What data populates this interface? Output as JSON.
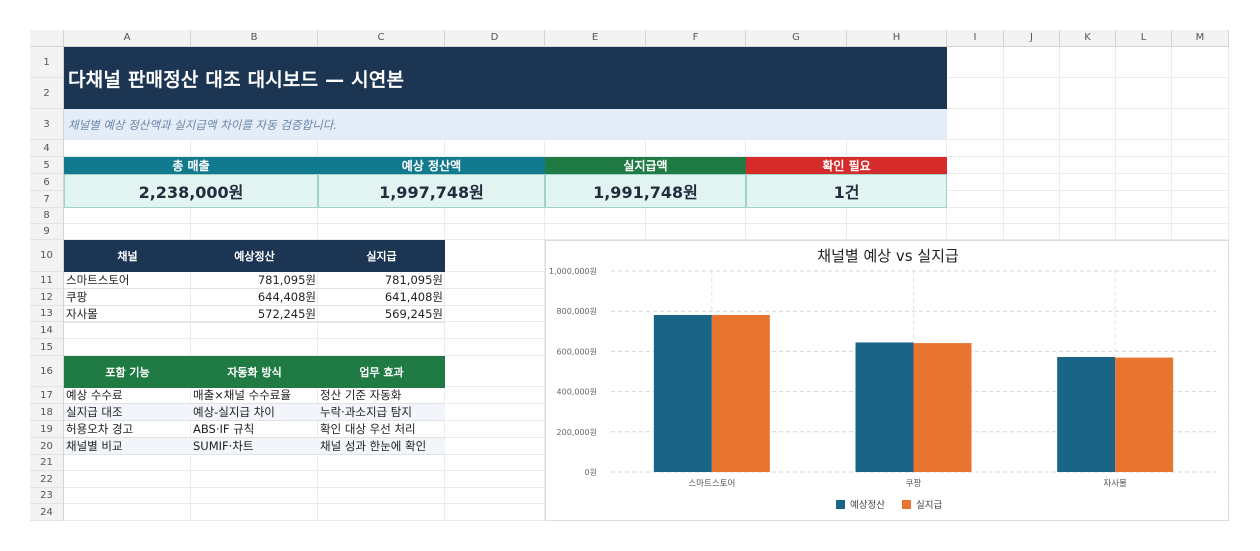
{
  "sheet": {
    "columns": [
      "A",
      "B",
      "C",
      "D",
      "E",
      "F",
      "G",
      "H",
      "I",
      "J",
      "K",
      "L",
      "M"
    ],
    "rows": [
      "1",
      "2",
      "3",
      "4",
      "5",
      "6",
      "7",
      "8",
      "9",
      "10",
      "11",
      "12",
      "13",
      "14",
      "15",
      "16",
      "17",
      "18",
      "19",
      "20",
      "21",
      "22",
      "23",
      "24"
    ]
  },
  "title": "다채널 판매정산 대조 대시보드 — 시연본",
  "subtitle": "채널별 예상 정산액과 실지급액 차이를 자동 검증합니다.",
  "kpis": [
    {
      "label": "총 매출",
      "value": "2,238,000원",
      "color": "#127a8f"
    },
    {
      "label": "예상 정산액",
      "value": "1,997,748원",
      "color": "#127a8f"
    },
    {
      "label": "실지급액",
      "value": "1,991,748원",
      "color": "#1f7a44"
    },
    {
      "label": "확인 필요",
      "value": "1건",
      "color": "#d62b2b"
    }
  ],
  "channel_table": {
    "headers": [
      "채널",
      "예상정산",
      "실지급"
    ],
    "rows": [
      [
        "스마트스토어",
        "781,095원",
        "781,095원"
      ],
      [
        "쿠팡",
        "644,408원",
        "641,408원"
      ],
      [
        "자사몰",
        "572,245원",
        "569,245원"
      ]
    ],
    "header_color": "#1b3553"
  },
  "feature_table": {
    "headers": [
      "포함 기능",
      "자동화 방식",
      "업무 효과"
    ],
    "rows": [
      [
        "예상 수수료",
        "매출×채널 수수료율",
        "정산 기준 자동화"
      ],
      [
        "실지급 대조",
        "예상-실지급 차이",
        "누락·과소지급 탐지"
      ],
      [
        "허용오차 경고",
        "ABS·IF 규칙",
        "확인 대상 우선 처리"
      ],
      [
        "채널별 비교",
        "SUMIF·차트",
        "채널 성과 한눈에 확인"
      ]
    ],
    "header_color": "#1f7a44"
  },
  "chart_data": {
    "type": "bar",
    "title": "채널별 예상 vs 실지급",
    "categories": [
      "스마트스토어",
      "쿠팡",
      "자사몰"
    ],
    "series": [
      {
        "name": "예상정산",
        "values": [
          781095,
          644408,
          572245
        ],
        "color": "#1a6487"
      },
      {
        "name": "실지급",
        "values": [
          781095,
          641408,
          569245
        ],
        "color": "#e8752f"
      }
    ],
    "ylim": [
      0,
      1000000
    ],
    "y_ticks": [
      "0원",
      "200,000원",
      "400,000원",
      "600,000원",
      "800,000원",
      "1,000,000원"
    ],
    "y_tick_values": [
      0,
      200000,
      400000,
      600000,
      800000,
      1000000
    ],
    "grid": true,
    "legend": "bottom"
  }
}
